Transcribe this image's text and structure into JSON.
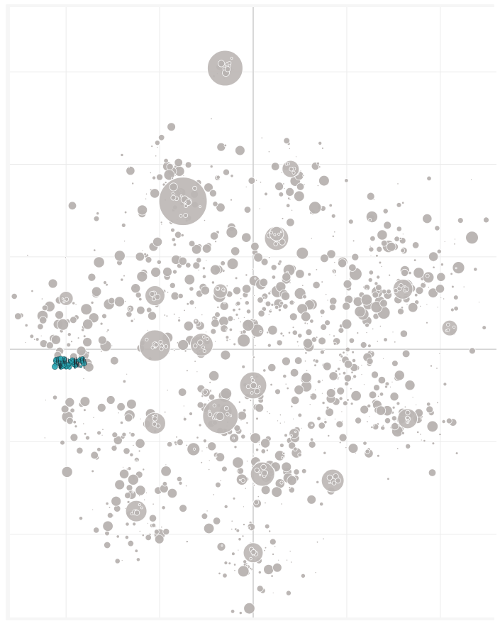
{
  "chart_data": {
    "type": "scatter",
    "title": "",
    "xlabel": "",
    "ylabel": "",
    "grid": true,
    "xlim": [
      -2.6,
      2.6
    ],
    "ylim": [
      -2.9,
      3.7
    ],
    "x_gridlines": [
      -2,
      -1,
      0,
      1,
      2
    ],
    "y_gridlines": [
      -2,
      -1,
      0,
      1,
      2,
      3
    ],
    "colors": {
      "point": "#b8b3b1",
      "highlight": "#2aa7b4",
      "highlight_text": "#1b2a33",
      "grid": "#ebebeb",
      "axis": "#cfcfcf"
    },
    "clusters": [
      {
        "x": -0.3,
        "y": 3.0,
        "count": 10,
        "spread": 0.08,
        "size_max": 4
      },
      {
        "x": -0.75,
        "y": 1.7,
        "count": 90,
        "spread": 0.35,
        "size_max": 7
      },
      {
        "x": 0.4,
        "y": 1.85,
        "count": 55,
        "spread": 0.25,
        "size_max": 7
      },
      {
        "x": 0.05,
        "y": 0.45,
        "count": 140,
        "spread": 0.4,
        "size_max": 8
      },
      {
        "x": 1.5,
        "y": 0.8,
        "count": 170,
        "spread": 0.45,
        "size_max": 8
      },
      {
        "x": -1.0,
        "y": 0.55,
        "count": 120,
        "spread": 0.45,
        "size_max": 7
      },
      {
        "x": -2.0,
        "y": 0.2,
        "count": 70,
        "spread": 0.3,
        "size_max": 7
      },
      {
        "x": -1.5,
        "y": -0.9,
        "count": 60,
        "spread": 0.3,
        "size_max": 7
      },
      {
        "x": -0.3,
        "y": -0.7,
        "count": 90,
        "spread": 0.35,
        "size_max": 8
      },
      {
        "x": 0.85,
        "y": -0.6,
        "count": 110,
        "spread": 0.35,
        "size_max": 7
      },
      {
        "x": 1.65,
        "y": -0.75,
        "count": 70,
        "spread": 0.28,
        "size_max": 7
      },
      {
        "x": -1.2,
        "y": -1.7,
        "count": 80,
        "spread": 0.32,
        "size_max": 7
      },
      {
        "x": 0.15,
        "y": -1.35,
        "count": 70,
        "spread": 0.3,
        "size_max": 7
      },
      {
        "x": 0.0,
        "y": -2.25,
        "count": 60,
        "spread": 0.25,
        "size_max": 7
      },
      {
        "x": 0.8,
        "y": 0.2,
        "count": 60,
        "spread": 0.3,
        "size_max": 6
      }
    ],
    "large_bubbles": [
      {
        "x": -0.3,
        "y": 3.04,
        "r": 25
      },
      {
        "x": -0.75,
        "y": 1.6,
        "r": 34
      },
      {
        "x": 0.4,
        "y": 1.95,
        "r": 12
      },
      {
        "x": 0.25,
        "y": 1.2,
        "r": 17
      },
      {
        "x": -1.05,
        "y": 0.58,
        "r": 14
      },
      {
        "x": -1.05,
        "y": 0.04,
        "r": 22
      },
      {
        "x": -0.55,
        "y": 0.05,
        "r": 16
      },
      {
        "x": 0.0,
        "y": -0.39,
        "r": 19
      },
      {
        "x": -0.35,
        "y": -0.72,
        "r": 25
      },
      {
        "x": -1.05,
        "y": -0.8,
        "r": 15
      },
      {
        "x": 0.1,
        "y": -1.35,
        "r": 17
      },
      {
        "x": 0.85,
        "y": -1.42,
        "r": 16
      },
      {
        "x": 1.6,
        "y": 0.65,
        "r": 14
      },
      {
        "x": 2.1,
        "y": 0.23,
        "r": 11
      },
      {
        "x": 1.65,
        "y": -0.75,
        "r": 14
      },
      {
        "x": -1.25,
        "y": -1.75,
        "r": 15
      },
      {
        "x": 0.0,
        "y": -2.2,
        "r": 14
      },
      {
        "x": -2.0,
        "y": 0.55,
        "r": 10
      },
      {
        "x": 0.25,
        "y": 1.25,
        "r": 10
      },
      {
        "x": -0.35,
        "y": 0.63,
        "r": 10
      }
    ],
    "highlight_cluster": {
      "x": -1.95,
      "y": -0.15,
      "count": 45,
      "spread_x": 0.17,
      "spread_y": 0.05
    }
  }
}
